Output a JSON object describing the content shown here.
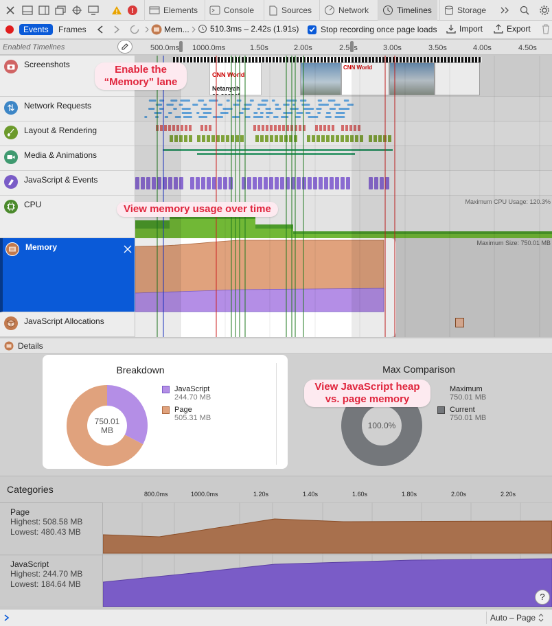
{
  "tabs": [
    {
      "label": "Elements",
      "icon": "elements-icon"
    },
    {
      "label": "Console",
      "icon": "console-icon"
    },
    {
      "label": "Sources",
      "icon": "sources-icon"
    },
    {
      "label": "Network",
      "icon": "network-icon"
    },
    {
      "label": "Timelines",
      "icon": "clock-icon"
    },
    {
      "label": "Storage",
      "icon": "storage-icon"
    }
  ],
  "toolbar": {
    "events": "Events",
    "frames": "Frames",
    "breadcrumb": "Mem...",
    "range": "510.3ms – 2.42s (1.91s)",
    "stop_recording": "Stop recording once page loads",
    "import": "Import",
    "export": "Export"
  },
  "ruler": {
    "label": "Enabled Timelines",
    "ticks": [
      "500.0ms",
      "1000.0ms",
      "1.50s",
      "2.00s",
      "2.50s",
      "3.00s",
      "3.50s",
      "4.00s",
      "4.50s"
    ]
  },
  "lanes": {
    "screenshots": "Screenshots",
    "network": "Network Requests",
    "layout": "Layout & Rendering",
    "media": "Media & Animations",
    "javascript": "JavaScript & Events",
    "cpu": "CPU",
    "cpu_max": "Maximum CPU Usage: 120.3%",
    "memory": "Memory",
    "memory_max": "Maximum Size: 750.01 MB",
    "allocations": "JavaScript Allocations"
  },
  "screenshot_thumbs": {
    "thumb1_title": "Netanyah\nas ceasef",
    "brand": "CNN World"
  },
  "callouts": {
    "enable_memory": "Enable the\n“Memory” lane",
    "memory_over_time": "View memory usage over time",
    "heap_vs_page": "View JavaScript heap\nvs. page memory"
  },
  "details": {
    "label": "Details",
    "breakdown": {
      "title": "Breakdown",
      "center_value": "750.01",
      "center_unit": "MB",
      "items": [
        {
          "name": "JavaScript",
          "value": "244.70 MB",
          "color": "#b48ee6",
          "amount": 244.7
        },
        {
          "name": "Page",
          "value": "505.31 MB",
          "color": "#e0a27d",
          "amount": 505.31
        }
      ]
    },
    "max_comparison": {
      "title": "Max Comparison",
      "center": "100.0%",
      "items": [
        {
          "name": "Maximum",
          "value": "750.01 MB"
        },
        {
          "name": "Current",
          "value": "750.01 MB"
        }
      ]
    }
  },
  "categories": {
    "title": "Categories",
    "ticks": [
      "800.0ms",
      "1000.0ms",
      "1.20s",
      "1.40s",
      "1.60s",
      "1.80s",
      "2.00s",
      "2.20s"
    ],
    "page": {
      "name": "Page",
      "highest": "Highest: 508.58 MB",
      "lowest": "Lowest: 480.43 MB"
    },
    "javascript": {
      "name": "JavaScript",
      "highest": "Highest: 244.70 MB",
      "lowest": "Lowest: 184.64 MB"
    }
  },
  "footer": {
    "scope": "Auto – Page",
    "help": "?"
  },
  "colors": {
    "accent": "#0a5ad8",
    "page": "#e0a27d",
    "javascript": "#b48ee6",
    "callout_text": "#e0243c"
  }
}
